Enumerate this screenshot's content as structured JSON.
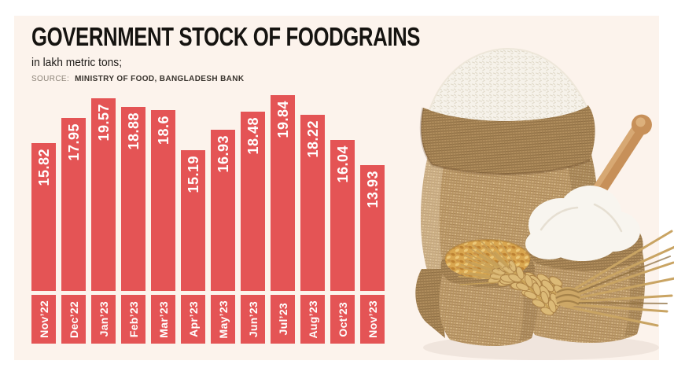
{
  "header": {
    "title": "GOVERNMENT STOCK OF FOODGRAINS",
    "subtitle": "in lakh metric tons;",
    "source_label": "SOURCE:",
    "source_text": "MINISTRY OF FOOD, BANGLADESH BANK"
  },
  "colors": {
    "bar": "#e45455",
    "bar_label_text": "#ffffff",
    "panel_bg": "#fcf3ec",
    "page_bg": "#ffffff",
    "title_text": "#151310",
    "burlap": "#c9a87a",
    "grain_gold": "#d9a64f",
    "rice_white": "#f7f4ee"
  },
  "chart_data": {
    "type": "bar",
    "title": "GOVERNMENT STOCK OF FOODGRAINS",
    "ylabel": "in lakh metric tons",
    "xlabel": "",
    "categories": [
      "Nov’22",
      "Dec’22",
      "Jan’23",
      "Feb’23",
      "Mar’23",
      "Apr’23",
      "May’23",
      "Jun’23",
      "Jul’23",
      "Aug’23",
      "Oct’23",
      "Nov’23"
    ],
    "values": [
      15.82,
      17.95,
      19.57,
      18.88,
      18.6,
      15.19,
      16.93,
      18.48,
      19.84,
      18.22,
      16.04,
      13.93
    ],
    "value_labels": [
      "15.82",
      "17.95",
      "19.57",
      "18.88",
      "18.6",
      "15.19",
      "16.93",
      "18.48",
      "19.84",
      "18.22",
      "16.04",
      "13.93"
    ],
    "grid": false,
    "legend_position": "none",
    "value_label_orientation": "vertical-inside-bar-top",
    "category_label_orientation": "vertical-on-red-block"
  },
  "illustration": {
    "name": "foodgrain-sacks-photo",
    "elements": [
      "rice-sack",
      "wheat-grain-sack",
      "flour-sack",
      "wooden-scoop",
      "wheat-ears-bundle"
    ]
  }
}
